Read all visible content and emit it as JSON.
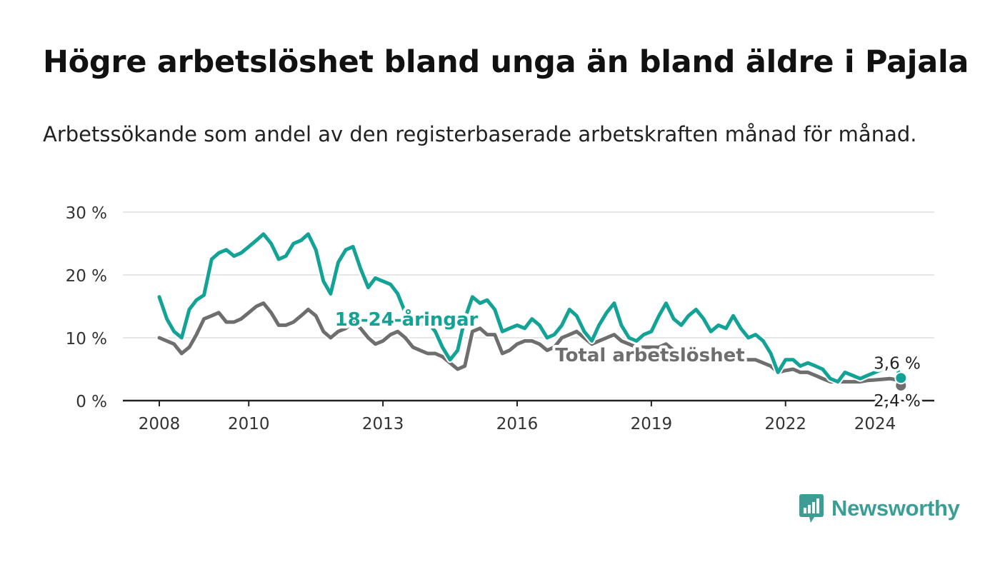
{
  "title": "Högre arbetslöshet bland unga än bland äldre i Pajala",
  "subtitle": "Arbetssökande som andel av den registerbaserade arbetskraften månad för månad.",
  "brand": "Newsworthy",
  "colors": {
    "youth": "#12a396",
    "total": "#6e6e6e",
    "grid": "#dddddd",
    "axis": "#222222",
    "brand": "#3a9e97"
  },
  "chart_data": {
    "type": "line",
    "ylim": [
      0,
      30
    ],
    "xlim": [
      2008.0,
      2024.75
    ],
    "y_ticks": [
      {
        "value": 0,
        "label": "0 %"
      },
      {
        "value": 10,
        "label": "10 %"
      },
      {
        "value": 20,
        "label": "20 %"
      },
      {
        "value": 30,
        "label": "30 %"
      }
    ],
    "x_ticks": [
      {
        "value": 2008,
        "label": "2008"
      },
      {
        "value": 2010,
        "label": "2010"
      },
      {
        "value": 2013,
        "label": "2013"
      },
      {
        "value": 2016,
        "label": "2016"
      },
      {
        "value": 2019,
        "label": "2019"
      },
      {
        "value": 2022,
        "label": "2022"
      },
      {
        "value": 2024,
        "label": "2024"
      }
    ],
    "grid": true,
    "series": [
      {
        "name": "18-24-åringar",
        "end_label": "3,6 %",
        "points": [
          [
            2008.0,
            16.5
          ],
          [
            2008.17,
            13.0
          ],
          [
            2008.33,
            11.0
          ],
          [
            2008.5,
            10.0
          ],
          [
            2008.67,
            14.5
          ],
          [
            2008.83,
            16.0
          ],
          [
            2009.0,
            16.8
          ],
          [
            2009.17,
            22.5
          ],
          [
            2009.33,
            23.5
          ],
          [
            2009.5,
            24.0
          ],
          [
            2009.67,
            23.0
          ],
          [
            2009.83,
            23.5
          ],
          [
            2010.0,
            24.5
          ],
          [
            2010.17,
            25.5
          ],
          [
            2010.33,
            26.5
          ],
          [
            2010.5,
            25.0
          ],
          [
            2010.67,
            22.5
          ],
          [
            2010.83,
            23.0
          ],
          [
            2011.0,
            25.0
          ],
          [
            2011.17,
            25.5
          ],
          [
            2011.33,
            26.5
          ],
          [
            2011.5,
            24.0
          ],
          [
            2011.67,
            19.0
          ],
          [
            2011.83,
            17.0
          ],
          [
            2012.0,
            22.0
          ],
          [
            2012.17,
            24.0
          ],
          [
            2012.33,
            24.5
          ],
          [
            2012.5,
            21.0
          ],
          [
            2012.67,
            18.0
          ],
          [
            2012.83,
            19.5
          ],
          [
            2013.0,
            19.0
          ],
          [
            2013.17,
            18.5
          ],
          [
            2013.33,
            17.0
          ],
          [
            2013.5,
            14.0
          ],
          [
            2013.67,
            12.5
          ],
          [
            2013.83,
            12.0
          ],
          [
            2014.0,
            12.5
          ],
          [
            2014.17,
            11.0
          ],
          [
            2014.33,
            8.5
          ],
          [
            2014.5,
            6.5
          ],
          [
            2014.67,
            8.0
          ],
          [
            2014.83,
            13.0
          ],
          [
            2015.0,
            16.5
          ],
          [
            2015.17,
            15.5
          ],
          [
            2015.33,
            16.0
          ],
          [
            2015.5,
            14.5
          ],
          [
            2015.67,
            11.0
          ],
          [
            2015.83,
            11.5
          ],
          [
            2016.0,
            12.0
          ],
          [
            2016.17,
            11.5
          ],
          [
            2016.33,
            13.0
          ],
          [
            2016.5,
            12.0
          ],
          [
            2016.67,
            10.0
          ],
          [
            2016.83,
            10.5
          ],
          [
            2017.0,
            12.0
          ],
          [
            2017.17,
            14.5
          ],
          [
            2017.33,
            13.5
          ],
          [
            2017.5,
            11.0
          ],
          [
            2017.67,
            9.5
          ],
          [
            2017.83,
            12.0
          ],
          [
            2018.0,
            14.0
          ],
          [
            2018.17,
            15.5
          ],
          [
            2018.33,
            12.0
          ],
          [
            2018.5,
            10.0
          ],
          [
            2018.67,
            9.5
          ],
          [
            2018.83,
            10.5
          ],
          [
            2019.0,
            11.0
          ],
          [
            2019.17,
            13.5
          ],
          [
            2019.33,
            15.5
          ],
          [
            2019.5,
            13.0
          ],
          [
            2019.67,
            12.0
          ],
          [
            2019.83,
            13.5
          ],
          [
            2020.0,
            14.5
          ],
          [
            2020.17,
            13.0
          ],
          [
            2020.33,
            11.0
          ],
          [
            2020.5,
            12.0
          ],
          [
            2020.67,
            11.5
          ],
          [
            2020.83,
            13.5
          ],
          [
            2021.0,
            11.5
          ],
          [
            2021.17,
            10.0
          ],
          [
            2021.33,
            10.5
          ],
          [
            2021.5,
            9.5
          ],
          [
            2021.67,
            7.5
          ],
          [
            2021.83,
            4.5
          ],
          [
            2022.0,
            6.5
          ],
          [
            2022.17,
            6.5
          ],
          [
            2022.33,
            5.5
          ],
          [
            2022.5,
            6.0
          ],
          [
            2022.67,
            5.5
          ],
          [
            2022.83,
            5.0
          ],
          [
            2023.0,
            3.5
          ],
          [
            2023.17,
            3.0
          ],
          [
            2023.33,
            4.5
          ],
          [
            2023.5,
            4.0
          ],
          [
            2023.67,
            3.5
          ],
          [
            2023.83,
            4.0
          ],
          [
            2024.0,
            4.5
          ],
          [
            2024.17,
            5.0
          ],
          [
            2024.33,
            5.5
          ],
          [
            2024.5,
            5.0
          ],
          [
            2024.58,
            3.6
          ]
        ]
      },
      {
        "name": "Total arbetslöshet",
        "end_label": "2,4 %",
        "points": [
          [
            2008.0,
            10.0
          ],
          [
            2008.17,
            9.5
          ],
          [
            2008.33,
            9.0
          ],
          [
            2008.5,
            7.5
          ],
          [
            2008.67,
            8.5
          ],
          [
            2008.83,
            10.5
          ],
          [
            2009.0,
            13.0
          ],
          [
            2009.17,
            13.5
          ],
          [
            2009.33,
            14.0
          ],
          [
            2009.5,
            12.5
          ],
          [
            2009.67,
            12.5
          ],
          [
            2009.83,
            13.0
          ],
          [
            2010.0,
            14.0
          ],
          [
            2010.17,
            15.0
          ],
          [
            2010.33,
            15.5
          ],
          [
            2010.5,
            14.0
          ],
          [
            2010.67,
            12.0
          ],
          [
            2010.83,
            12.0
          ],
          [
            2011.0,
            12.5
          ],
          [
            2011.17,
            13.5
          ],
          [
            2011.33,
            14.5
          ],
          [
            2011.5,
            13.5
          ],
          [
            2011.67,
            11.0
          ],
          [
            2011.83,
            10.0
          ],
          [
            2012.0,
            11.0
          ],
          [
            2012.17,
            11.5
          ],
          [
            2012.33,
            12.5
          ],
          [
            2012.5,
            11.5
          ],
          [
            2012.67,
            10.0
          ],
          [
            2012.83,
            9.0
          ],
          [
            2013.0,
            9.5
          ],
          [
            2013.17,
            10.5
          ],
          [
            2013.33,
            11.0
          ],
          [
            2013.5,
            10.0
          ],
          [
            2013.67,
            8.5
          ],
          [
            2013.83,
            8.0
          ],
          [
            2014.0,
            7.5
          ],
          [
            2014.17,
            7.5
          ],
          [
            2014.33,
            7.0
          ],
          [
            2014.5,
            6.0
          ],
          [
            2014.67,
            5.0
          ],
          [
            2014.83,
            5.5
          ],
          [
            2015.0,
            11.0
          ],
          [
            2015.17,
            11.5
          ],
          [
            2015.33,
            10.5
          ],
          [
            2015.5,
            10.5
          ],
          [
            2015.67,
            7.5
          ],
          [
            2015.83,
            8.0
          ],
          [
            2016.0,
            9.0
          ],
          [
            2016.17,
            9.5
          ],
          [
            2016.33,
            9.5
          ],
          [
            2016.5,
            9.0
          ],
          [
            2016.67,
            8.0
          ],
          [
            2016.83,
            8.5
          ],
          [
            2017.0,
            10.0
          ],
          [
            2017.17,
            10.5
          ],
          [
            2017.33,
            11.0
          ],
          [
            2017.5,
            10.0
          ],
          [
            2017.67,
            9.0
          ],
          [
            2017.83,
            9.5
          ],
          [
            2018.0,
            10.0
          ],
          [
            2018.17,
            10.5
          ],
          [
            2018.33,
            9.5
          ],
          [
            2018.5,
            9.0
          ],
          [
            2018.67,
            8.5
          ],
          [
            2018.83,
            8.5
          ],
          [
            2019.0,
            8.5
          ],
          [
            2019.17,
            8.5
          ],
          [
            2019.33,
            9.0
          ],
          [
            2019.5,
            8.0
          ],
          [
            2019.67,
            7.5
          ],
          [
            2019.83,
            7.5
          ],
          [
            2020.0,
            7.0
          ],
          [
            2020.17,
            7.0
          ],
          [
            2020.33,
            7.0
          ],
          [
            2020.5,
            7.0
          ],
          [
            2020.67,
            6.5
          ],
          [
            2020.83,
            6.5
          ],
          [
            2021.0,
            6.5
          ],
          [
            2021.17,
            6.5
          ],
          [
            2021.33,
            6.5
          ],
          [
            2021.5,
            6.0
          ],
          [
            2021.67,
            5.5
          ],
          [
            2021.83,
            4.5
          ],
          [
            2022.0,
            4.8
          ],
          [
            2022.17,
            5.0
          ],
          [
            2022.33,
            4.5
          ],
          [
            2022.5,
            4.5
          ],
          [
            2022.67,
            4.0
          ],
          [
            2022.83,
            3.5
          ],
          [
            2023.0,
            3.0
          ],
          [
            2023.17,
            3.0
          ],
          [
            2023.33,
            3.0
          ],
          [
            2023.5,
            3.0
          ],
          [
            2023.67,
            3.0
          ],
          [
            2023.83,
            3.2
          ],
          [
            2024.0,
            3.3
          ],
          [
            2024.17,
            3.4
          ],
          [
            2024.33,
            3.5
          ],
          [
            2024.5,
            3.3
          ],
          [
            2024.58,
            2.4
          ]
        ]
      }
    ],
    "annotations": [
      {
        "text": "18-24-åringar",
        "series": 0
      },
      {
        "text": "Total arbetslöshet",
        "series": 1
      }
    ]
  }
}
